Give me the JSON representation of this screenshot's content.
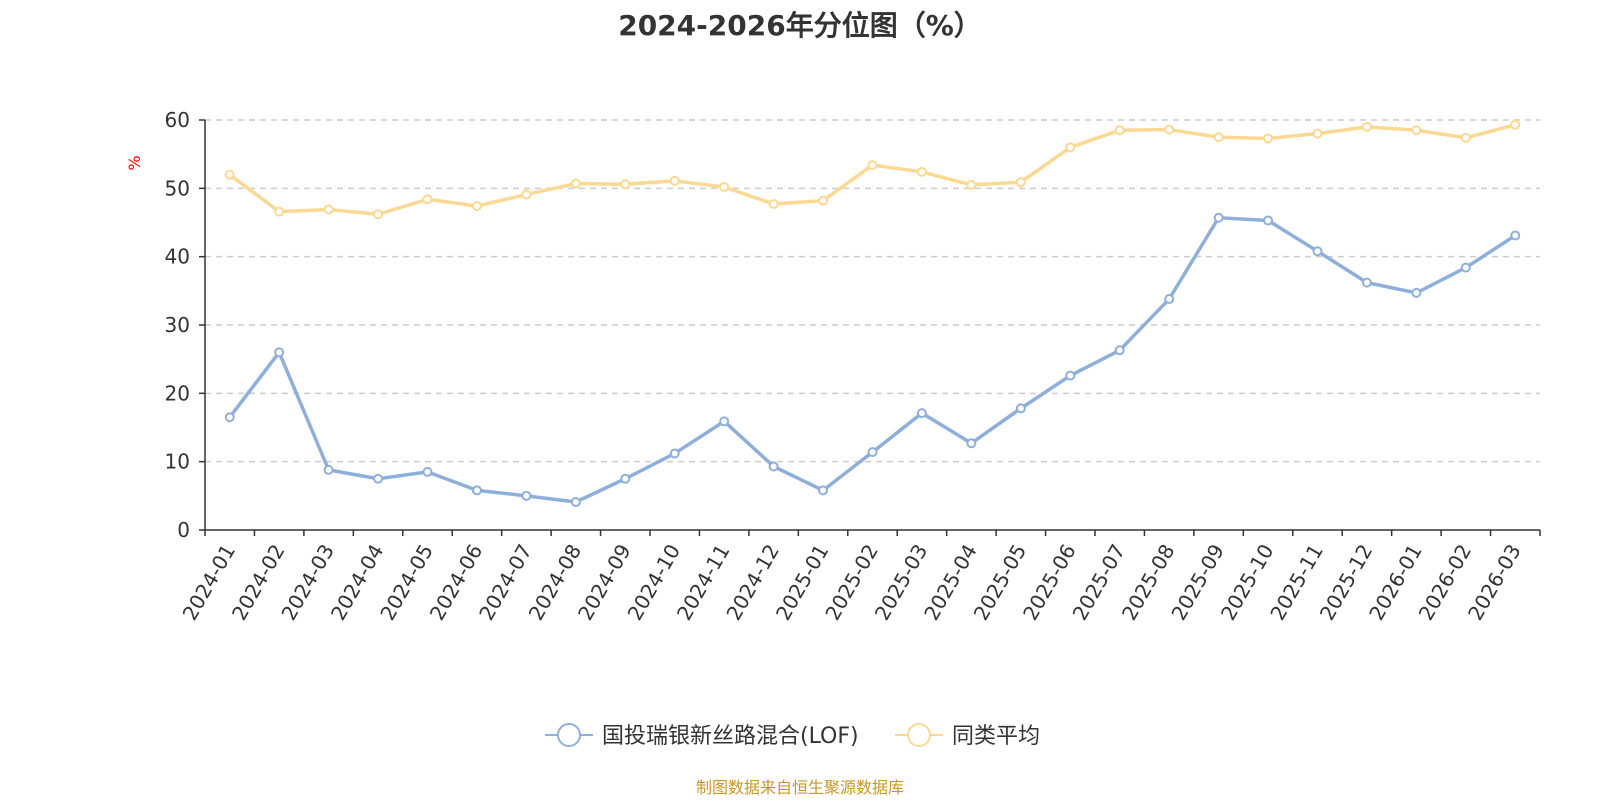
{
  "chart_data": {
    "type": "line",
    "title": "2024-2026年分位图（%）",
    "ylabel": "%",
    "xlabel": "",
    "ylim": [
      0,
      60
    ],
    "yticks": [
      0,
      10,
      20,
      30,
      40,
      50,
      60
    ],
    "grid": true,
    "legend_position": "bottom-center",
    "categories": [
      "2024-01",
      "2024-02",
      "2024-03",
      "2024-04",
      "2024-05",
      "2024-06",
      "2024-07",
      "2024-08",
      "2024-09",
      "2024-10",
      "2024-11",
      "2024-12",
      "2025-01",
      "2025-02",
      "2025-03",
      "2025-04",
      "2025-05",
      "2025-06",
      "2025-07",
      "2025-08",
      "2025-09",
      "2025-10",
      "2025-11",
      "2025-12",
      "2026-01",
      "2026-02",
      "2026-03"
    ],
    "series": [
      {
        "name": "国投瑞银新丝路混合(LOF)",
        "color": "#8fafdb",
        "values": [
          16.5,
          26.0,
          8.8,
          7.5,
          8.5,
          5.8,
          5.0,
          4.1,
          7.5,
          11.2,
          15.9,
          9.3,
          5.8,
          11.4,
          17.1,
          12.7,
          17.8,
          22.6,
          26.3,
          33.8,
          45.7,
          45.3,
          40.8,
          36.2,
          34.7,
          38.4,
          43.1
        ]
      },
      {
        "name": "同类平均",
        "color": "#fcd992",
        "values": [
          52.0,
          46.6,
          46.9,
          46.2,
          48.4,
          47.4,
          49.1,
          50.7,
          50.6,
          51.1,
          50.2,
          47.7,
          48.2,
          53.4,
          52.4,
          50.5,
          50.9,
          56.0,
          58.5,
          58.6,
          57.5,
          57.3,
          58.0,
          59.0,
          58.5,
          57.4,
          59.3
        ]
      }
    ]
  },
  "footer": {
    "source": "制图数据来自恒生聚源数据库",
    "source_color": "#c8962a"
  }
}
